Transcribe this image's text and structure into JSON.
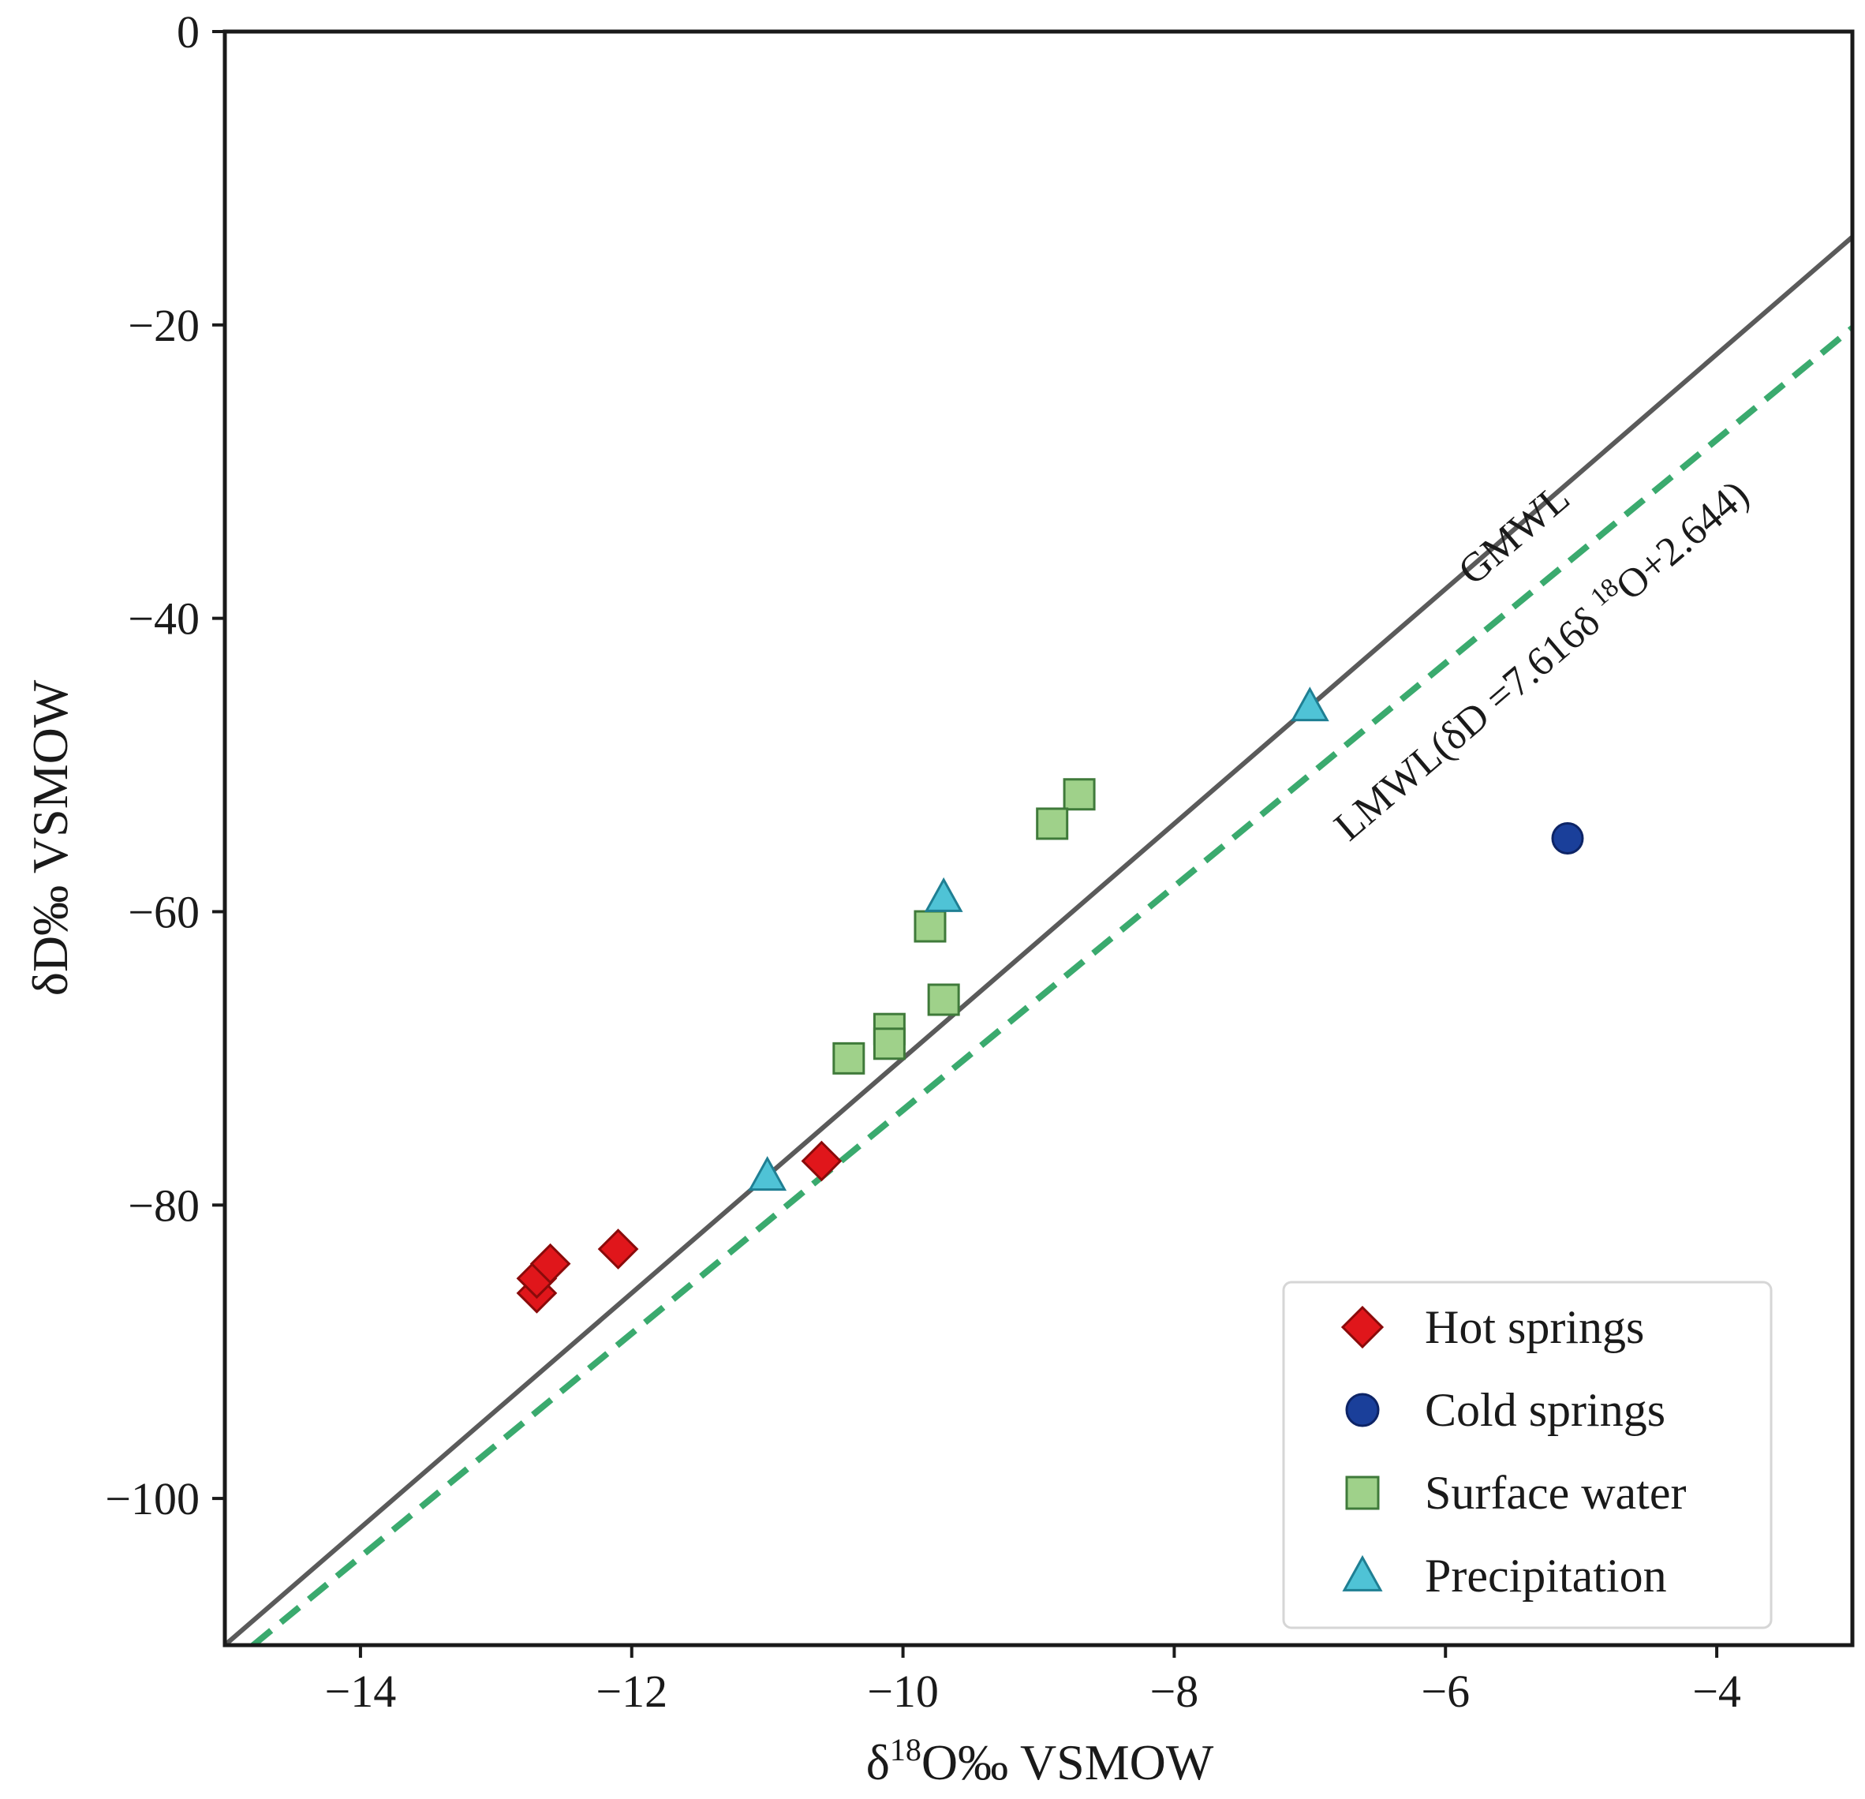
{
  "chart_data": {
    "type": "scatter",
    "xlabel": "δ18O‰ VSMOW",
    "ylabel": "δD‰ VSMOW",
    "xlim": [
      -15,
      -3
    ],
    "ylim": [
      -110,
      0
    ],
    "x_ticks": [
      -14,
      -12,
      -10,
      -8,
      -6,
      -4
    ],
    "y_ticks": [
      0,
      -20,
      -40,
      -60,
      -80,
      -100
    ],
    "x_tick_labels": [
      "−14",
      "−12",
      "−10",
      "−8",
      "−6",
      "−4"
    ],
    "y_tick_labels": [
      "0",
      "−20",
      "−40",
      "−60",
      "−80",
      "−100"
    ],
    "grid": false,
    "legend_position": "bottom-right",
    "lines": [
      {
        "name": "GMWL",
        "label": "GMWL",
        "slope": 8,
        "intercept": 10,
        "style": "solid",
        "color": "#5a5a5a"
      },
      {
        "name": "LMWL",
        "label": "LMWL(δD =7.616δ18O+2.644)",
        "slope": 7.616,
        "intercept": 2.644,
        "style": "dashed",
        "color": "#3aaa6e"
      }
    ],
    "series": [
      {
        "name": "Hot springs",
        "marker": "diamond",
        "color": "#e0161b",
        "stroke": "#8a0a0a",
        "points": [
          [
            -12.7,
            -86
          ],
          [
            -12.7,
            -85
          ],
          [
            -12.6,
            -84
          ],
          [
            -12.1,
            -83
          ],
          [
            -10.6,
            -77
          ]
        ]
      },
      {
        "name": "Cold springs",
        "marker": "circle",
        "color": "#1a3f9a",
        "stroke": "#0d2466",
        "points": [
          [
            -5.1,
            -55
          ]
        ]
      },
      {
        "name": "Surface water",
        "marker": "square",
        "color": "#9fd18a",
        "stroke": "#3f7a3a",
        "points": [
          [
            -8.7,
            -52
          ],
          [
            -8.9,
            -54
          ],
          [
            -9.8,
            -61
          ],
          [
            -9.7,
            -66
          ],
          [
            -10.1,
            -68
          ],
          [
            -10.1,
            -69
          ],
          [
            -10.4,
            -70
          ]
        ]
      },
      {
        "name": "Precipitation",
        "marker": "triangle",
        "color": "#4fc3d6",
        "stroke": "#1f7f93",
        "points": [
          [
            -7.0,
            -46
          ],
          [
            -9.7,
            -59
          ],
          [
            -11.0,
            -78
          ]
        ]
      }
    ]
  }
}
